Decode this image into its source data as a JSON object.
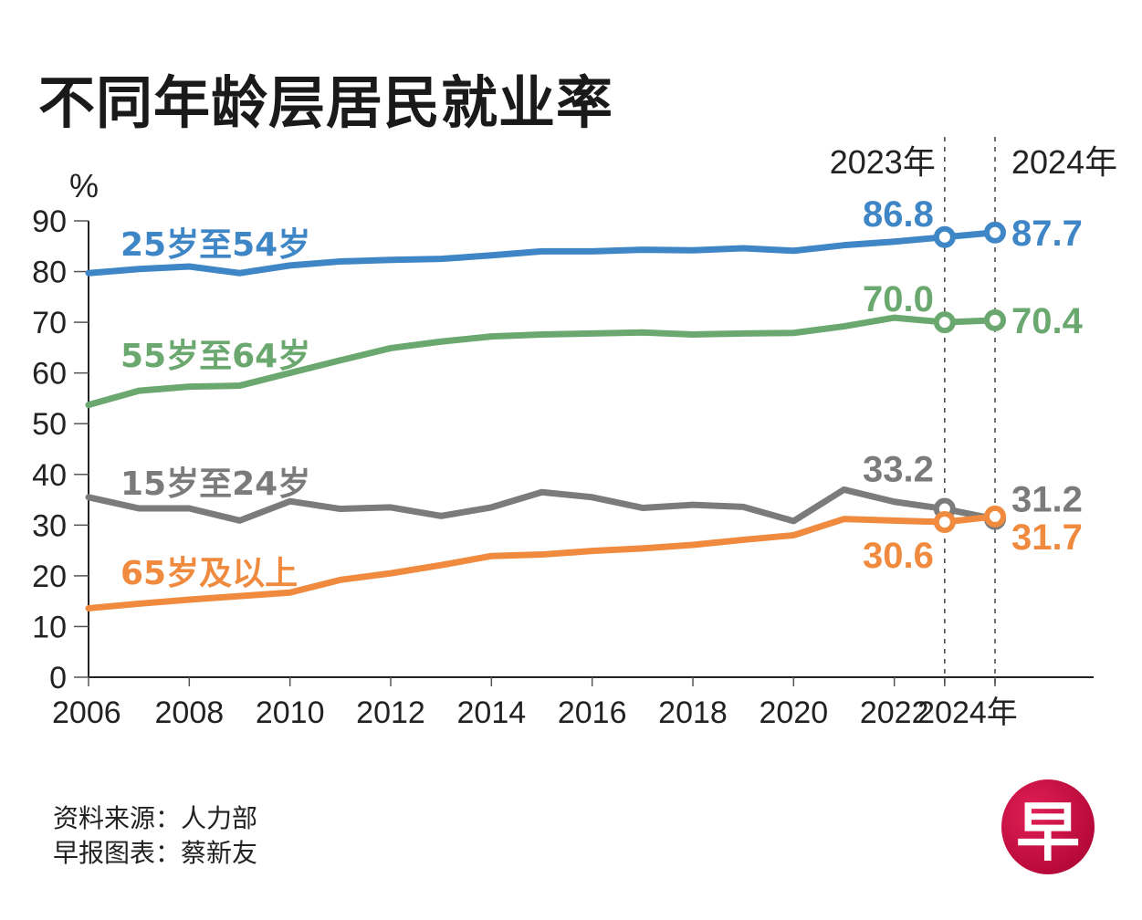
{
  "title": "不同年龄层居民就业率",
  "footer": {
    "source": "资料来源：人力部",
    "credit": "早报图表：蔡新友"
  },
  "logo": {
    "glyph": "早",
    "icon": "zaobao-logo-icon",
    "color": "#c8103f"
  },
  "chart_data": {
    "type": "line",
    "title": "不同年龄层居民就业率",
    "xlabel": "",
    "ylabel": "%",
    "ylim": [
      0,
      90
    ],
    "xlim": [
      2006,
      2026
    ],
    "y_ticks": [
      0,
      10,
      20,
      30,
      40,
      50,
      60,
      70,
      80,
      90
    ],
    "y_tick_labels": [
      "0",
      "10",
      "20",
      "30",
      "40",
      "50",
      "60",
      "70",
      "80",
      "90"
    ],
    "x_ticks": [
      2006,
      2008,
      2010,
      2012,
      2014,
      2016,
      2018,
      2020,
      2022,
      2024
    ],
    "x_tick_labels": [
      "2006",
      "2008",
      "2010",
      "2012",
      "2014",
      "2016",
      "2018",
      "2020",
      "2022",
      "2024年"
    ],
    "grid": false,
    "legend": "inline-labels",
    "highlight_years": [
      {
        "year": 2023,
        "label": "2023年"
      },
      {
        "year": 2024,
        "label": "2024年"
      }
    ],
    "x": [
      2006,
      2007,
      2008,
      2009,
      2010,
      2011,
      2012,
      2013,
      2014,
      2015,
      2016,
      2017,
      2018,
      2019,
      2020,
      2021,
      2022,
      2023,
      2024
    ],
    "series": [
      {
        "name": "25岁至54岁",
        "color": "#3f86c6",
        "values": [
          79.7,
          80.5,
          81.0,
          79.7,
          81.2,
          82.0,
          82.3,
          82.5,
          83.2,
          84.0,
          84.0,
          84.3,
          84.2,
          84.6,
          84.1,
          85.2,
          85.9,
          86.8,
          87.7
        ],
        "annotations": [
          {
            "year": 2023,
            "text": "86.8"
          },
          {
            "year": 2024,
            "text": "87.7"
          }
        ]
      },
      {
        "name": "55岁至64岁",
        "color": "#6aa86f",
        "values": [
          53.7,
          56.5,
          57.3,
          57.5,
          60.0,
          62.5,
          64.9,
          66.2,
          67.2,
          67.6,
          67.8,
          68.0,
          67.6,
          67.8,
          67.9,
          69.2,
          70.9,
          70.0,
          70.4
        ],
        "annotations": [
          {
            "year": 2023,
            "text": "70.0"
          },
          {
            "year": 2024,
            "text": "70.4"
          }
        ]
      },
      {
        "name": "15岁至24岁",
        "color": "#7b7b7b",
        "values": [
          35.5,
          33.3,
          33.3,
          30.9,
          34.7,
          33.2,
          33.5,
          31.8,
          33.5,
          36.5,
          35.5,
          33.4,
          34.0,
          33.6,
          30.8,
          37.0,
          34.6,
          33.2,
          31.2
        ],
        "annotations": [
          {
            "year": 2023,
            "text": "33.2"
          },
          {
            "year": 2024,
            "text": "31.2"
          }
        ]
      },
      {
        "name": "65岁及以上",
        "color": "#ef8a3e",
        "values": [
          13.6,
          14.5,
          15.3,
          16.0,
          16.7,
          19.2,
          20.5,
          22.1,
          23.9,
          24.2,
          24.9,
          25.4,
          26.1,
          27.1,
          28.0,
          31.2,
          30.9,
          30.6,
          31.7
        ],
        "annotations": [
          {
            "year": 2023,
            "text": "30.6"
          },
          {
            "year": 2024,
            "text": "31.7"
          }
        ]
      }
    ]
  }
}
